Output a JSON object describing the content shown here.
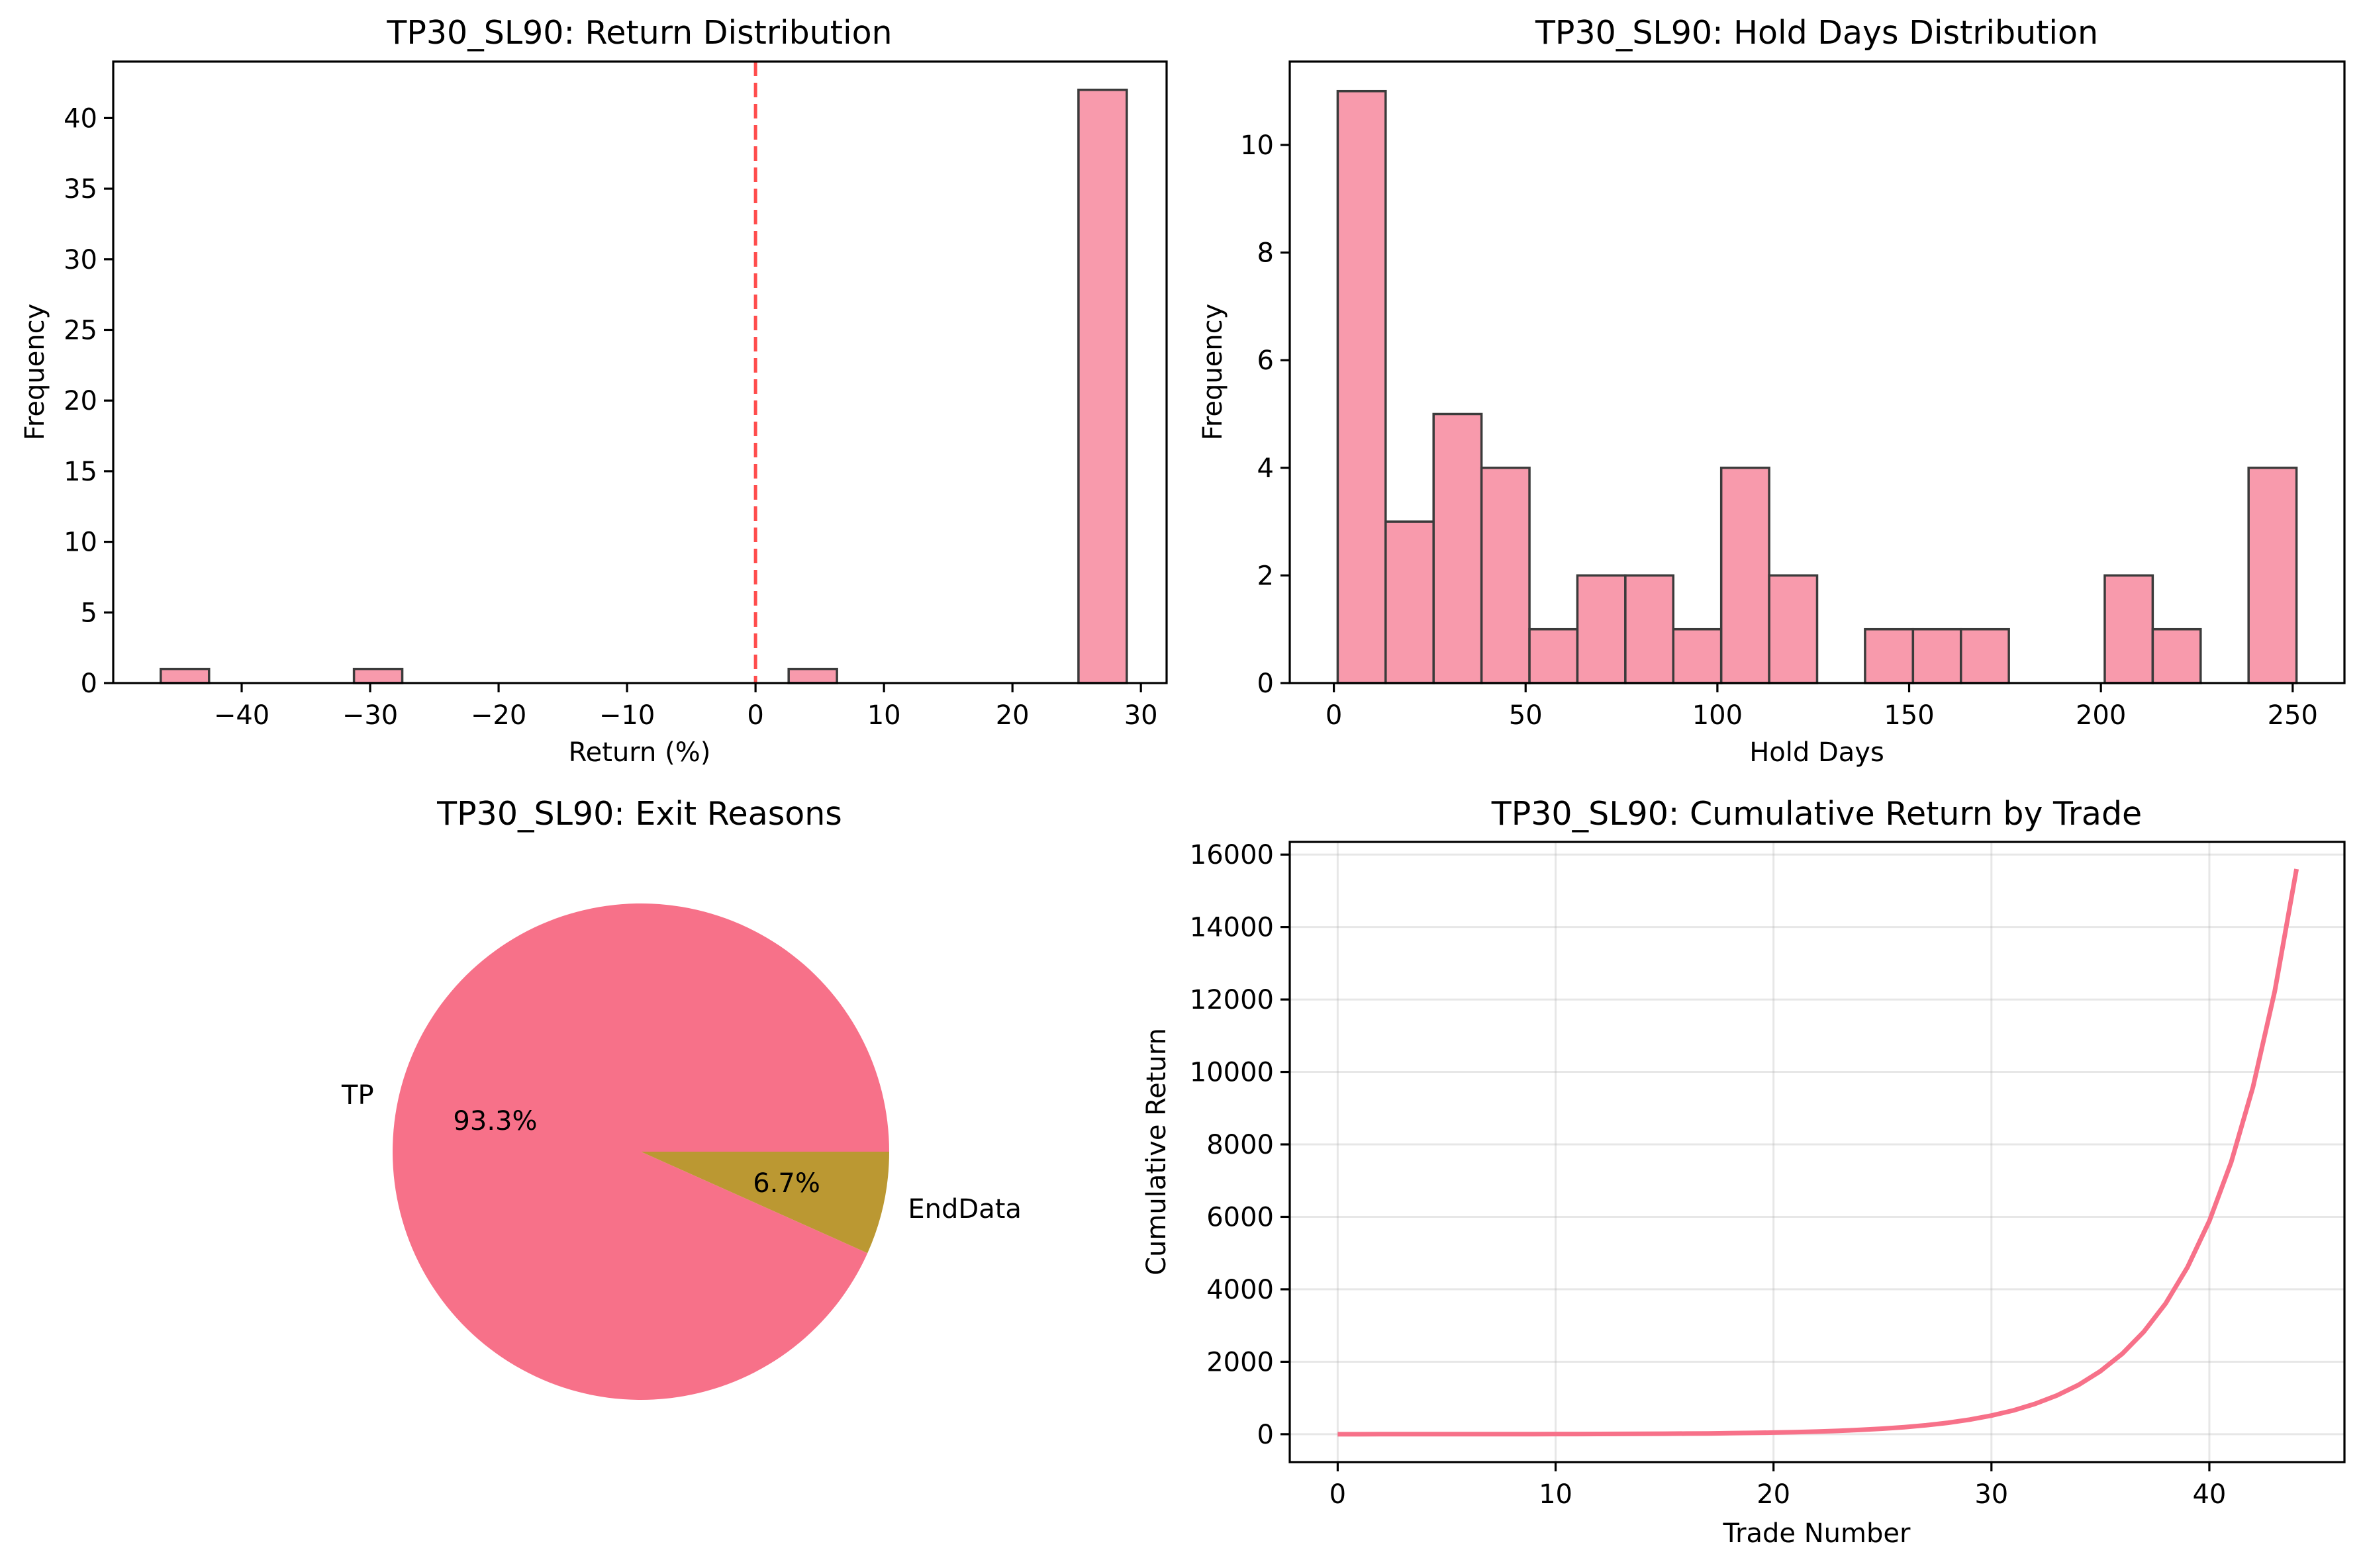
{
  "figure": {
    "background": "#ffffff",
    "accent_color": "#f77189",
    "secondary_color": "#bb9832"
  },
  "chart_data": [
    {
      "id": "return_dist",
      "type": "bar",
      "subtype": "histogram",
      "title": "TP30_SL90: Return Distribution",
      "xlabel": "Return (%)",
      "ylabel": "Frequency",
      "xlim": [
        -50,
        32
      ],
      "ylim": [
        0,
        44
      ],
      "xticks": [
        -40,
        -30,
        -20,
        -10,
        0,
        10,
        20,
        30
      ],
      "xtick_labels": [
        "−40",
        "−30",
        "−20",
        "−10",
        "0",
        "10",
        "20",
        "30"
      ],
      "yticks": [
        0,
        5,
        10,
        15,
        20,
        25,
        30,
        35,
        40
      ],
      "ytick_labels": [
        "0",
        "5",
        "10",
        "15",
        "20",
        "25",
        "30",
        "35",
        "40"
      ],
      "bin_start": -46.3,
      "bin_width": 3.76,
      "counts": [
        1,
        0,
        0,
        0,
        1,
        0,
        0,
        0,
        0,
        0,
        0,
        0,
        0,
        1,
        0,
        0,
        0,
        0,
        0,
        42
      ],
      "bar_color": "#f7889d",
      "edge_color": "#3b3b3b",
      "reference_line": {
        "x": 0,
        "style": "dashed",
        "color": "#ff0000"
      },
      "grid": false
    },
    {
      "id": "hold_days_dist",
      "type": "bar",
      "subtype": "histogram",
      "title": "TP30_SL90: Hold Days Distribution",
      "xlabel": "Hold Days",
      "ylabel": "Frequency",
      "xlim": [
        -11.5,
        263.5
      ],
      "ylim": [
        0,
        11.55
      ],
      "xticks": [
        0,
        50,
        100,
        150,
        200,
        250
      ],
      "xtick_labels": [
        "0",
        "50",
        "100",
        "150",
        "200",
        "250"
      ],
      "yticks": [
        0,
        2,
        4,
        6,
        8,
        10
      ],
      "ytick_labels": [
        "0",
        "2",
        "4",
        "6",
        "8",
        "10"
      ],
      "bin_start": 1,
      "bin_width": 12.5,
      "counts": [
        11,
        3,
        5,
        4,
        1,
        2,
        2,
        1,
        4,
        2,
        0,
        1,
        1,
        1,
        0,
        0,
        2,
        1,
        0,
        4
      ],
      "bar_color": "#f7889d",
      "edge_color": "#3b3b3b",
      "grid": false
    },
    {
      "id": "exit_reasons",
      "type": "pie",
      "title": "TP30_SL90: Exit Reasons",
      "labels": [
        "TP",
        "EndData"
      ],
      "values": [
        93.3,
        6.7
      ],
      "pct_labels": [
        "93.3%",
        "6.7%"
      ],
      "colors": [
        "#f77189",
        "#bb9832"
      ],
      "start_angle": 0
    },
    {
      "id": "cumulative_return",
      "type": "line",
      "title": "TP30_SL90: Cumulative Return by Trade",
      "xlabel": "Trade Number",
      "ylabel": "Cumulative Return",
      "xlim": [
        -2.2,
        46.2
      ],
      "ylim": [
        -770,
        16350
      ],
      "xticks": [
        0,
        10,
        20,
        30,
        40
      ],
      "xtick_labels": [
        "0",
        "10",
        "20",
        "30",
        "40"
      ],
      "yticks": [
        0,
        2000,
        4000,
        6000,
        8000,
        10000,
        12000,
        14000,
        16000
      ],
      "ytick_labels": [
        "0",
        "2000",
        "4000",
        "6000",
        "8000",
        "10000",
        "12000",
        "14000",
        "16000"
      ],
      "x": [
        0,
        1,
        2,
        3,
        4,
        5,
        6,
        7,
        8,
        9,
        10,
        11,
        12,
        13,
        14,
        15,
        16,
        17,
        18,
        19,
        20,
        21,
        22,
        23,
        24,
        25,
        26,
        27,
        28,
        29,
        30,
        31,
        32,
        33,
        34,
        35,
        36,
        37,
        38,
        39,
        40,
        41,
        42,
        43,
        44
      ],
      "y": [
        0,
        0,
        1,
        1,
        1,
        1,
        1,
        2,
        2,
        3,
        4,
        5,
        6,
        8,
        10,
        13,
        17,
        22,
        28,
        35,
        45,
        57,
        73,
        93,
        119,
        152,
        194,
        248,
        316,
        403,
        514,
        656,
        837,
        1068,
        1363,
        1740,
        2220,
        2833,
        3614,
        4612,
        5885,
        7509,
        9581,
        12226,
        15600
      ],
      "line_color": "#f77189",
      "grid": true
    }
  ]
}
